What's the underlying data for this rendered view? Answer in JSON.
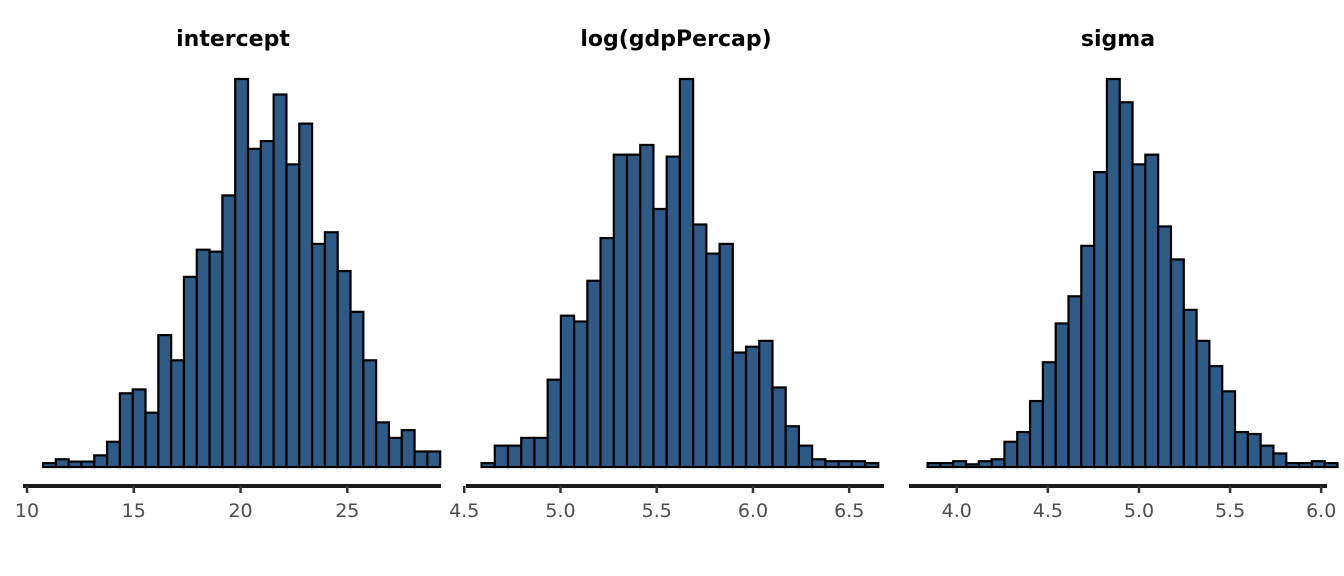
{
  "fill_color": "#2f5a85",
  "chart_data": [
    {
      "type": "histogram",
      "title": "intercept",
      "xlim": [
        10,
        29.2
      ],
      "x_ticks": [
        10,
        15,
        20,
        25
      ],
      "x_tick_labels": [
        "10",
        "15",
        "20",
        "25"
      ],
      "bin_start": 10.75,
      "bin_width": 0.6,
      "counts": [
        1,
        2,
        1.4,
        1.4,
        3,
        6.5,
        19,
        20,
        14,
        34,
        27.5,
        49,
        56,
        55.5,
        70,
        100,
        82,
        84,
        96,
        78,
        88.5,
        57.5,
        60.5,
        50.5,
        40,
        27.5,
        11.5,
        7.5,
        9.5,
        4,
        4
      ],
      "ylim": [
        0,
        100
      ],
      "grid": false
    },
    {
      "type": "histogram",
      "title": "log(gdpPercap)",
      "xlim": [
        4.53,
        6.66
      ],
      "x_ticks": [
        4.5,
        5.0,
        5.5,
        6.0,
        6.5
      ],
      "x_tick_labels": [
        "4.5",
        "5.0",
        "5.5",
        "6.0",
        "6.5"
      ],
      "bin_start": 4.59,
      "bin_width": 0.0687,
      "counts": [
        1,
        5.5,
        5.5,
        7.5,
        7.5,
        22.5,
        39,
        37.5,
        48,
        59,
        80.5,
        80.5,
        83,
        66.5,
        80,
        100,
        62.5,
        55,
        57.5,
        29.5,
        31,
        32.5,
        20.5,
        10.5,
        5.5,
        2,
        1.5,
        1.5,
        1.5,
        1
      ],
      "ylim": [
        0,
        100
      ],
      "grid": false
    },
    {
      "type": "histogram",
      "title": "sigma",
      "xlim": [
        3.76,
        6.01
      ],
      "x_ticks": [
        4.0,
        4.5,
        5.0,
        5.5,
        6.0
      ],
      "x_tick_labels": [
        "4.0",
        "4.5",
        "5.0",
        "5.5",
        "6.0"
      ],
      "bin_start": 3.84,
      "bin_width": 0.0703,
      "counts": [
        1,
        1,
        1.5,
        0.7,
        1.5,
        2,
        6.5,
        9,
        17,
        27,
        37,
        44,
        57,
        76,
        100,
        94,
        78,
        80.5,
        62,
        53.5,
        40.5,
        32.5,
        26,
        19.5,
        9,
        8.5,
        5.5,
        3.5,
        1,
        1,
        1.5,
        1
      ]
    }
  ]
}
